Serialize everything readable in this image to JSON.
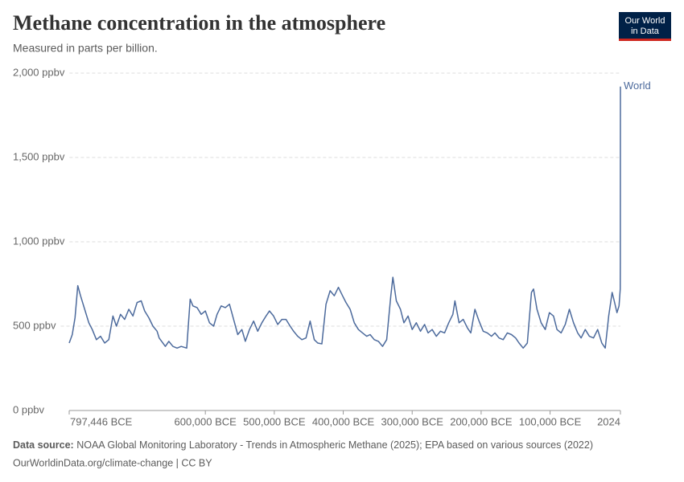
{
  "logo_lines": [
    "Our World",
    "in Data"
  ],
  "chart_data": {
    "type": "line",
    "title": "Methane concentration in the atmosphere",
    "subtitle": "Measured in parts per billion.",
    "source_label": "Data source:",
    "source": "NOAA Global Monitoring Laboratory - Trends in Atmospheric Methane (2025); EPA based on various sources (2022)",
    "footer_note": "OurWorldinData.org/climate-change | CC BY",
    "grid": true,
    "xlim": [
      -797446,
      2024
    ],
    "xticks": [
      {
        "value": -797446,
        "label": "797,446 BCE"
      },
      {
        "value": -600000,
        "label": "600,000 BCE"
      },
      {
        "value": -500000,
        "label": "500,000 BCE"
      },
      {
        "value": -400000,
        "label": "400,000 BCE"
      },
      {
        "value": -300000,
        "label": "300,000 BCE"
      },
      {
        "value": -200000,
        "label": "200,000 BCE"
      },
      {
        "value": -100000,
        "label": "100,000 BCE"
      },
      2024
    ],
    "ylim": [
      0,
      2000
    ],
    "yticks": [
      {
        "value": 0,
        "label": "0 ppbv"
      },
      {
        "value": 500,
        "label": "500 ppbv"
      },
      {
        "value": 1000,
        "label": "1,000 ppbv"
      },
      {
        "value": 1500,
        "label": "1,500 ppbv"
      },
      {
        "value": 2000,
        "label": "2,000 ppbv"
      }
    ],
    "x": [
      -797446,
      -793000,
      -789000,
      -785000,
      -781000,
      -775000,
      -769000,
      -764000,
      -758000,
      -752000,
      -746000,
      -740000,
      -734000,
      -729000,
      -723000,
      -717000,
      -711000,
      -705000,
      -699000,
      -693000,
      -688000,
      -682000,
      -676000,
      -670000,
      -667000,
      -658000,
      -653000,
      -647000,
      -641000,
      -635000,
      -627000,
      -622000,
      -618000,
      -612000,
      -606000,
      -600000,
      -594000,
      -588000,
      -583000,
      -577000,
      -571000,
      -565000,
      -559000,
      -553000,
      -547000,
      -542000,
      -536000,
      -530000,
      -524000,
      -518000,
      -512000,
      -507000,
      -501000,
      -495000,
      -489000,
      -483000,
      -477000,
      -472000,
      -466000,
      -460000,
      -454000,
      -448000,
      -442000,
      -437000,
      -431000,
      -425000,
      -419000,
      -413000,
      -407000,
      -401000,
      -396000,
      -390000,
      -384000,
      -378000,
      -372000,
      -366000,
      -361000,
      -355000,
      -349000,
      -343000,
      -337000,
      -331000,
      -328000,
      -323000,
      -317000,
      -312000,
      -306000,
      -300000,
      -294000,
      -288000,
      -282000,
      -277000,
      -271000,
      -265000,
      -259000,
      -253000,
      -247000,
      -241000,
      -238000,
      -232000,
      -226000,
      -220000,
      -215000,
      -209000,
      -203000,
      -197000,
      -191000,
      -185000,
      -180000,
      -174000,
      -168000,
      -162000,
      -156000,
      -150000,
      -145000,
      -139000,
      -133000,
      -127000,
      -124000,
      -119000,
      -113000,
      -107000,
      -101000,
      -95000,
      -90000,
      -84000,
      -78000,
      -72000,
      -66000,
      -60000,
      -55000,
      -49000,
      -43000,
      -37000,
      -31000,
      -25000,
      -20000,
      -15000,
      -10000,
      -7000,
      -3000,
      0,
      1750,
      1900,
      1980,
      2024
    ],
    "series": [
      {
        "name": "World",
        "color": "#4c6a9c",
        "values": [
          400,
          450,
          550,
          740,
          680,
          600,
          520,
          480,
          420,
          440,
          400,
          420,
          560,
          500,
          570,
          540,
          600,
          560,
          640,
          650,
          590,
          550,
          500,
          470,
          430,
          380,
          410,
          380,
          370,
          380,
          370,
          660,
          620,
          610,
          570,
          590,
          520,
          500,
          570,
          620,
          610,
          630,
          540,
          450,
          480,
          410,
          480,
          530,
          470,
          520,
          560,
          590,
          560,
          510,
          540,
          540,
          500,
          470,
          440,
          420,
          430,
          530,
          420,
          400,
          395,
          630,
          710,
          680,
          730,
          680,
          640,
          600,
          520,
          480,
          460,
          440,
          450,
          420,
          410,
          380,
          420,
          680,
          790,
          650,
          600,
          520,
          560,
          480,
          520,
          470,
          510,
          460,
          480,
          440,
          470,
          460,
          520,
          570,
          650,
          520,
          540,
          490,
          460,
          600,
          530,
          470,
          460,
          440,
          460,
          430,
          420,
          460,
          450,
          430,
          400,
          370,
          400,
          700,
          720,
          600,
          520,
          480,
          580,
          560,
          480,
          460,
          510,
          600,
          520,
          460,
          430,
          480,
          440,
          430,
          480,
          400,
          370,
          560,
          700,
          650,
          580,
          620,
          720,
          880,
          1600,
          1920
        ]
      }
    ]
  }
}
